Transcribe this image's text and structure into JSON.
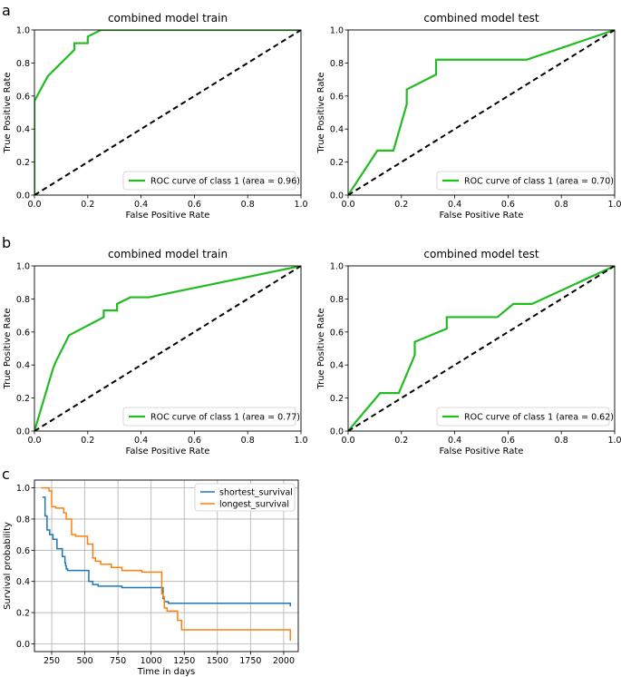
{
  "panel_labels": [
    "a",
    "b",
    "c"
  ],
  "colors": {
    "roc": "#22bb22",
    "diag": "#000000",
    "blue": "#1f77b4",
    "orange": "#ff7f0e",
    "grid": "#b0b0b0"
  },
  "chart_data": [
    {
      "type": "line",
      "panel": "a",
      "title": "combined model train",
      "xlabel": "False Positive Rate",
      "ylabel": "True Positive Rate",
      "xlim": [
        0,
        1
      ],
      "ylim": [
        0,
        1
      ],
      "xticks": [
        "0.0",
        "0.2",
        "0.4",
        "0.6",
        "0.8",
        "1.0"
      ],
      "yticks": [
        "0.0",
        "0.2",
        "0.4",
        "0.6",
        "0.8",
        "1.0"
      ],
      "legend": "ROC curve of class 1 (area = 0.96)",
      "legend_position": "lower-right",
      "series": [
        {
          "name": "ROC curve of class 1 (area = 0.96)",
          "x": [
            0,
            0,
            0.05,
            0.15,
            0.15,
            0.2,
            0.2,
            0.25,
            1
          ],
          "y": [
            0,
            0.57,
            0.72,
            0.88,
            0.92,
            0.92,
            0.96,
            1,
            1
          ]
        },
        {
          "name": "chance",
          "dashed": true,
          "x": [
            0,
            1
          ],
          "y": [
            0,
            1
          ]
        }
      ]
    },
    {
      "type": "line",
      "panel": "a",
      "title": "combined model test",
      "xlabel": "False Positive Rate",
      "ylabel": "True Positive Rate",
      "xlim": [
        0,
        1
      ],
      "ylim": [
        0,
        1
      ],
      "xticks": [
        "0.0",
        "0.2",
        "0.4",
        "0.6",
        "0.8",
        "1.0"
      ],
      "yticks": [
        "0.0",
        "0.2",
        "0.4",
        "0.6",
        "0.8",
        "1.0"
      ],
      "legend": "ROC curve of class 1 (area = 0.70)",
      "legend_position": "lower-right",
      "series": [
        {
          "name": "ROC curve of class 1 (area = 0.70)",
          "x": [
            0,
            0.11,
            0.17,
            0.22,
            0.22,
            0.33,
            0.33,
            0.67,
            1
          ],
          "y": [
            0,
            0.27,
            0.27,
            0.55,
            0.64,
            0.73,
            0.82,
            0.82,
            1
          ]
        },
        {
          "name": "chance",
          "dashed": true,
          "x": [
            0,
            1
          ],
          "y": [
            0,
            1
          ]
        }
      ]
    },
    {
      "type": "line",
      "panel": "b",
      "title": "combined model train",
      "xlabel": "False Positive Rate",
      "ylabel": "True Positive Rate",
      "xlim": [
        0,
        1
      ],
      "ylim": [
        0,
        1
      ],
      "xticks": [
        "0.0",
        "0.2",
        "0.4",
        "0.6",
        "0.8",
        "1.0"
      ],
      "yticks": [
        "0.0",
        "0.2",
        "0.4",
        "0.6",
        "0.8",
        "1.0"
      ],
      "legend": "ROC curve of class 1 (area = 0.77)",
      "legend_position": "lower-right",
      "series": [
        {
          "name": "ROC curve of class 1 (area = 0.77)",
          "x": [
            0,
            0.07,
            0.08,
            0.13,
            0.26,
            0.26,
            0.31,
            0.31,
            0.36,
            0.43,
            1
          ],
          "y": [
            0,
            0.38,
            0.42,
            0.58,
            0.69,
            0.73,
            0.73,
            0.77,
            0.81,
            0.81,
            1
          ]
        },
        {
          "name": "chance",
          "dashed": true,
          "x": [
            0,
            1
          ],
          "y": [
            0,
            1
          ]
        }
      ]
    },
    {
      "type": "line",
      "panel": "b",
      "title": "combined model test",
      "xlabel": "False Positive Rate",
      "ylabel": "True Positive Rate",
      "xlim": [
        0,
        1
      ],
      "ylim": [
        0,
        1
      ],
      "xticks": [
        "0.0",
        "0.2",
        "0.4",
        "0.6",
        "0.8",
        "1.0"
      ],
      "yticks": [
        "0.0",
        "0.2",
        "0.4",
        "0.6",
        "0.8",
        "1.0"
      ],
      "legend": "ROC curve of class 1 (area = 0.62)",
      "legend_position": "lower-right",
      "series": [
        {
          "name": "ROC curve of class 1 (area = 0.62)",
          "x": [
            0,
            0.12,
            0.19,
            0.25,
            0.25,
            0.37,
            0.37,
            0.56,
            0.62,
            0.69,
            1
          ],
          "y": [
            0,
            0.23,
            0.23,
            0.46,
            0.54,
            0.62,
            0.69,
            0.69,
            0.77,
            0.77,
            1
          ]
        },
        {
          "name": "chance",
          "dashed": true,
          "x": [
            0,
            1
          ],
          "y": [
            0,
            1
          ]
        }
      ]
    },
    {
      "type": "line",
      "panel": "c",
      "step": true,
      "grid": true,
      "title": "",
      "xlabel": "Time in days",
      "ylabel": "Survival probability",
      "xlim": [
        120,
        2110
      ],
      "ylim": [
        -0.05,
        1.05
      ],
      "xticks": [
        "250",
        "500",
        "750",
        "1000",
        "1250",
        "1500",
        "1750",
        "2000"
      ],
      "yticks": [
        "0.0",
        "0.2",
        "0.4",
        "0.6",
        "0.8",
        "1.0"
      ],
      "legend_position": "top-right",
      "series": [
        {
          "name": "shortest_survival",
          "color": "blue",
          "x": [
            180,
            200,
            215,
            235,
            260,
            290,
            330,
            350,
            355,
            360,
            370,
            530,
            560,
            600,
            690,
            780,
            1070,
            1090,
            1100,
            1130,
            2050
          ],
          "y": [
            0.94,
            0.82,
            0.73,
            0.7,
            0.67,
            0.61,
            0.56,
            0.52,
            0.5,
            0.48,
            0.47,
            0.4,
            0.38,
            0.37,
            0.37,
            0.36,
            0.36,
            0.29,
            0.27,
            0.26,
            0.24
          ]
        },
        {
          "name": "longest_survival",
          "color": "orange",
          "x": [
            170,
            230,
            250,
            280,
            340,
            360,
            400,
            430,
            520,
            560,
            580,
            620,
            700,
            780,
            930,
            1080,
            1090,
            1100,
            1120,
            1200,
            1230,
            1920,
            2050
          ],
          "y": [
            1.0,
            0.98,
            0.88,
            0.87,
            0.84,
            0.8,
            0.7,
            0.69,
            0.64,
            0.55,
            0.53,
            0.51,
            0.49,
            0.47,
            0.46,
            0.32,
            0.3,
            0.23,
            0.21,
            0.15,
            0.09,
            0.09,
            0.02
          ]
        }
      ]
    }
  ]
}
